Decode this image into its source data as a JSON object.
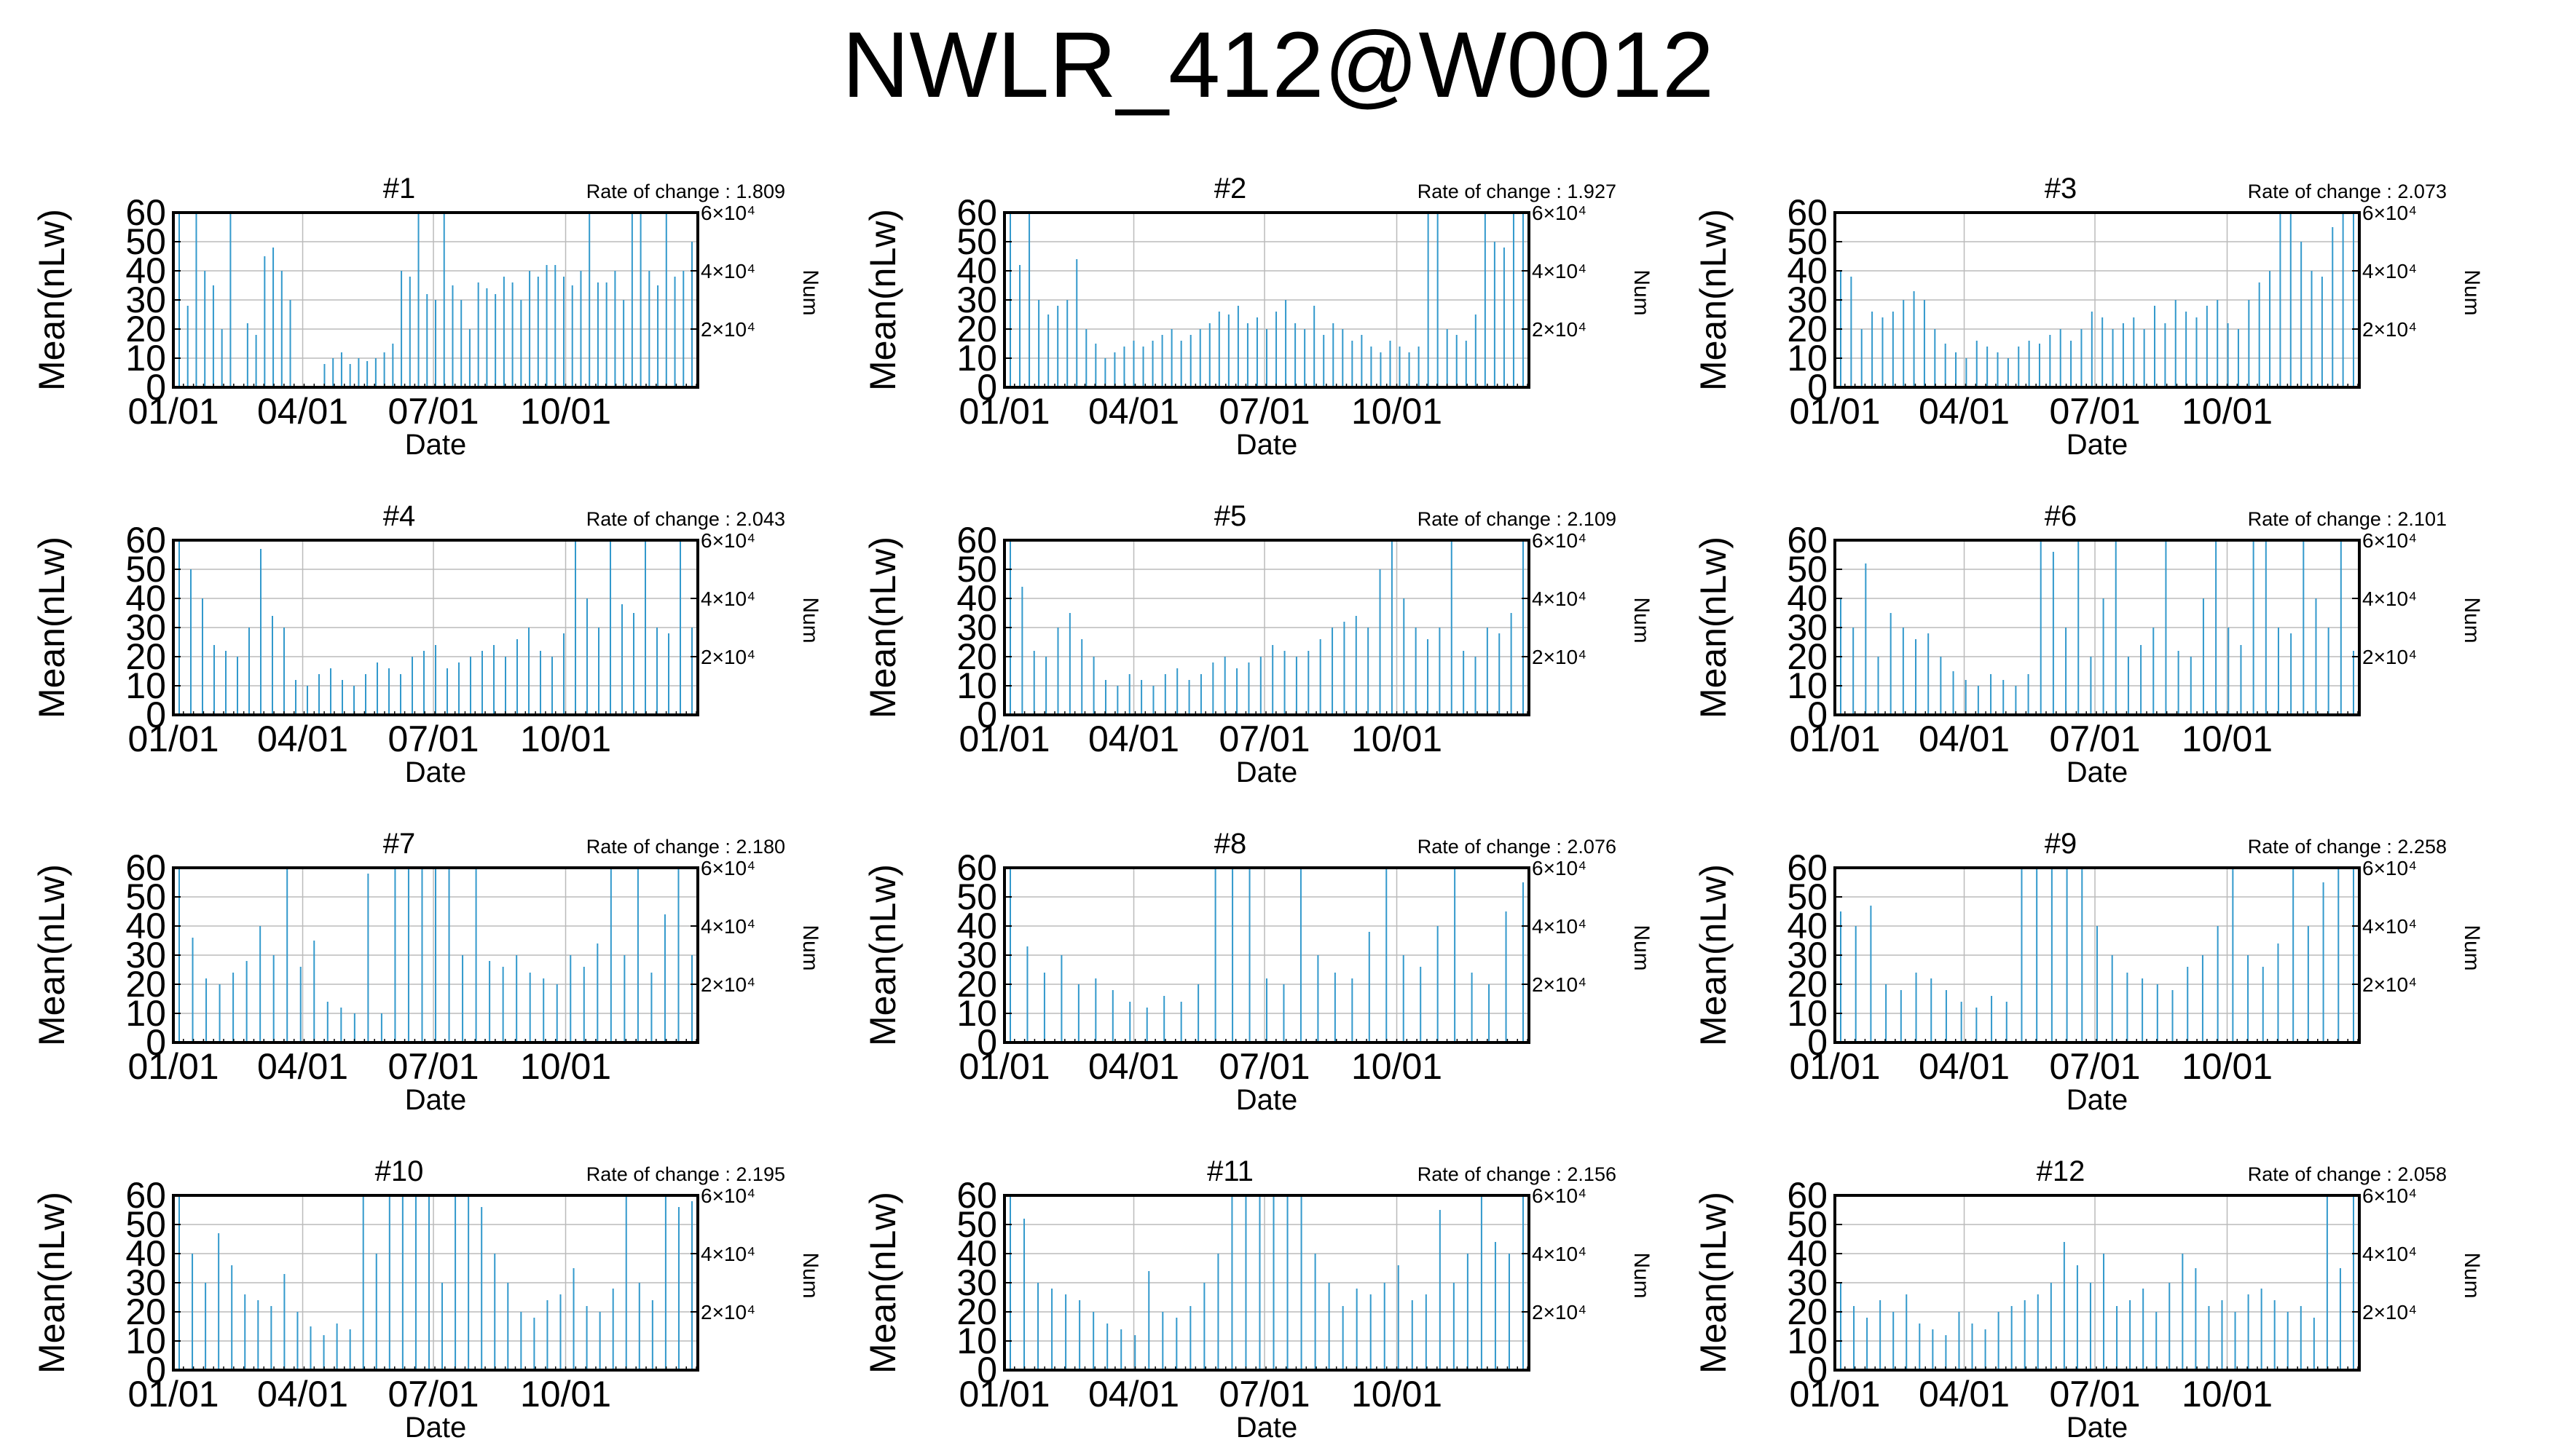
{
  "page": {
    "title": "NWLR_412@W0012"
  },
  "colors": {
    "series": "#3399cc",
    "grid": "#bbbbbb",
    "frame": "#000000"
  },
  "chart_data": [
    {
      "type": "bar",
      "title": "#1",
      "annotation": "Rate of change : 1.809",
      "xlabel": "Date",
      "ylabel": "Mean(nLw)",
      "y2label": "Num",
      "xticks": [
        "01/01",
        "04/01",
        "07/01",
        "10/01"
      ],
      "yticks": [
        0,
        10,
        20,
        30,
        40,
        50,
        60
      ],
      "ylim": [
        0,
        60
      ],
      "y2ticks": [
        "2×10⁴",
        "4×10⁴",
        "6×10⁴"
      ],
      "y2values": [
        20000,
        40000,
        60000
      ],
      "y2lim": [
        0,
        60000
      ],
      "xlim": [
        "01/01",
        "12/31"
      ],
      "grid": true,
      "series": [
        {
          "values": [
            60,
            28,
            60,
            40,
            35,
            20,
            60,
            0,
            22,
            18,
            45,
            48,
            40,
            30,
            0,
            0,
            0,
            8,
            10,
            12,
            8,
            10,
            9,
            10,
            12,
            15,
            40,
            38,
            60,
            32,
            30,
            60,
            35,
            30,
            20,
            36,
            34,
            32,
            38,
            36,
            30,
            40,
            38,
            42,
            42,
            38,
            35,
            40,
            60,
            36,
            36,
            40,
            30,
            60,
            60,
            40,
            35,
            60,
            38,
            40,
            50
          ]
        }
      ]
    },
    {
      "type": "bar",
      "title": "#2",
      "annotation": "Rate of change : 1.927",
      "xlabel": "Date",
      "ylabel": "Mean(nLw)",
      "y2label": "Num",
      "xticks": [
        "01/01",
        "04/01",
        "07/01",
        "10/01"
      ],
      "yticks": [
        0,
        10,
        20,
        30,
        40,
        50,
        60
      ],
      "ylim": [
        0,
        60
      ],
      "y2ticks": [
        "2×10⁴",
        "4×10⁴",
        "6×10⁴"
      ],
      "y2values": [
        20000,
        40000,
        60000
      ],
      "y2lim": [
        0,
        60000
      ],
      "xlim": [
        "01/01",
        "12/31"
      ],
      "grid": true,
      "series": [
        {
          "values": [
            60,
            42,
            60,
            30,
            25,
            28,
            30,
            44,
            20,
            15,
            10,
            12,
            14,
            16,
            14,
            16,
            18,
            20,
            16,
            18,
            20,
            22,
            26,
            25,
            28,
            22,
            24,
            20,
            26,
            30,
            22,
            20,
            28,
            18,
            22,
            20,
            16,
            18,
            14,
            12,
            16,
            14,
            12,
            14,
            60,
            60,
            20,
            18,
            16,
            25,
            60,
            50,
            48,
            60,
            60
          ]
        }
      ]
    },
    {
      "type": "bar",
      "title": "#3",
      "annotation": "Rate of change : 2.073",
      "xlabel": "Date",
      "ylabel": "Mean(nLw)",
      "y2label": "Num",
      "xticks": [
        "01/01",
        "04/01",
        "07/01",
        "10/01"
      ],
      "yticks": [
        0,
        10,
        20,
        30,
        40,
        50,
        60
      ],
      "ylim": [
        0,
        60
      ],
      "y2ticks": [
        "2×10⁴",
        "4×10⁴",
        "6×10⁴"
      ],
      "y2values": [
        20000,
        40000,
        60000
      ],
      "y2lim": [
        0,
        60000
      ],
      "xlim": [
        "01/01",
        "12/31"
      ],
      "grid": true,
      "series": [
        {
          "values": [
            40,
            38,
            20,
            26,
            24,
            26,
            30,
            33,
            30,
            20,
            15,
            12,
            10,
            16,
            14,
            12,
            10,
            14,
            16,
            15,
            18,
            20,
            16,
            20,
            26,
            24,
            20,
            22,
            24,
            20,
            28,
            22,
            30,
            26,
            24,
            28,
            30,
            22,
            20,
            30,
            36,
            40,
            60,
            60,
            50,
            40,
            38,
            55,
            60,
            60
          ]
        }
      ]
    },
    {
      "type": "bar",
      "title": "#4",
      "annotation": "Rate of change : 2.043",
      "xlabel": "Date",
      "ylabel": "Mean(nLw)",
      "y2label": "Num",
      "xticks": [
        "01/01",
        "04/01",
        "07/01",
        "10/01"
      ],
      "yticks": [
        0,
        10,
        20,
        30,
        40,
        50,
        60
      ],
      "ylim": [
        0,
        60
      ],
      "y2ticks": [
        "2×10⁴",
        "4×10⁴",
        "6×10⁴"
      ],
      "y2values": [
        20000,
        40000,
        60000
      ],
      "y2lim": [
        0,
        60000
      ],
      "xlim": [
        "01/01",
        "12/31"
      ],
      "grid": true,
      "series": [
        {
          "values": [
            60,
            50,
            40,
            24,
            22,
            20,
            30,
            57,
            34,
            30,
            12,
            10,
            14,
            16,
            12,
            10,
            14,
            18,
            16,
            14,
            20,
            22,
            24,
            16,
            18,
            20,
            22,
            24,
            20,
            26,
            30,
            22,
            20,
            28,
            60,
            40,
            30,
            60,
            38,
            35,
            60,
            30,
            28,
            60,
            30
          ]
        }
      ]
    },
    {
      "type": "bar",
      "title": "#5",
      "annotation": "Rate of change : 2.109",
      "xlabel": "Date",
      "ylabel": "Mean(nLw)",
      "y2label": "Num",
      "xticks": [
        "01/01",
        "04/01",
        "07/01",
        "10/01"
      ],
      "yticks": [
        0,
        10,
        20,
        30,
        40,
        50,
        60
      ],
      "ylim": [
        0,
        60
      ],
      "y2ticks": [
        "2×10⁴",
        "4×10⁴",
        "6×10⁴"
      ],
      "y2values": [
        20000,
        40000,
        60000
      ],
      "y2lim": [
        0,
        60000
      ],
      "xlim": [
        "01/01",
        "12/31"
      ],
      "grid": true,
      "series": [
        {
          "values": [
            60,
            44,
            22,
            20,
            30,
            35,
            26,
            20,
            12,
            10,
            14,
            12,
            10,
            14,
            16,
            12,
            14,
            18,
            20,
            16,
            18,
            20,
            24,
            22,
            20,
            22,
            26,
            30,
            32,
            34,
            30,
            50,
            60,
            40,
            30,
            26,
            30,
            60,
            22,
            20,
            30,
            28,
            35,
            60
          ]
        }
      ]
    },
    {
      "type": "bar",
      "title": "#6",
      "annotation": "Rate of change : 2.101",
      "xlabel": "Date",
      "ylabel": "Mean(nLw)",
      "y2label": "Num",
      "xticks": [
        "01/01",
        "04/01",
        "07/01",
        "10/01"
      ],
      "yticks": [
        0,
        10,
        20,
        30,
        40,
        50,
        60
      ],
      "ylim": [
        0,
        60
      ],
      "y2ticks": [
        "2×10⁴",
        "4×10⁴",
        "6×10⁴"
      ],
      "y2values": [
        20000,
        40000,
        60000
      ],
      "y2lim": [
        0,
        60000
      ],
      "xlim": [
        "01/01",
        "12/31"
      ],
      "grid": true,
      "series": [
        {
          "values": [
            40,
            30,
            52,
            20,
            35,
            30,
            26,
            28,
            20,
            15,
            12,
            10,
            14,
            12,
            10,
            14,
            60,
            56,
            30,
            60,
            20,
            40,
            60,
            20,
            24,
            30,
            60,
            22,
            20,
            40,
            60,
            30,
            24,
            60,
            60,
            30,
            28,
            60,
            40,
            30,
            60,
            22
          ]
        }
      ]
    },
    {
      "type": "bar",
      "title": "#7",
      "annotation": "Rate of change : 2.180",
      "xlabel": "Date",
      "ylabel": "Mean(nLw)",
      "y2label": "Num",
      "xticks": [
        "01/01",
        "04/01",
        "07/01",
        "10/01"
      ],
      "yticks": [
        0,
        10,
        20,
        30,
        40,
        50,
        60
      ],
      "ylim": [
        0,
        60
      ],
      "y2ticks": [
        "2×10⁴",
        "4×10⁴",
        "6×10⁴"
      ],
      "y2values": [
        20000,
        40000,
        60000
      ],
      "y2lim": [
        0,
        60000
      ],
      "xlim": [
        "01/01",
        "12/31"
      ],
      "grid": true,
      "series": [
        {
          "values": [
            60,
            36,
            22,
            20,
            24,
            28,
            40,
            30,
            60,
            26,
            35,
            14,
            12,
            10,
            58,
            10,
            60,
            60,
            60,
            60,
            60,
            30,
            60,
            28,
            26,
            30,
            24,
            22,
            20,
            30,
            26,
            34,
            60,
            30,
            60,
            24,
            44,
            60,
            30
          ]
        }
      ]
    },
    {
      "type": "bar",
      "title": "#8",
      "annotation": "Rate of change : 2.076",
      "xlabel": "Date",
      "ylabel": "Mean(nLw)",
      "y2label": "Num",
      "xticks": [
        "01/01",
        "04/01",
        "07/01",
        "10/01"
      ],
      "yticks": [
        0,
        10,
        20,
        30,
        40,
        50,
        60
      ],
      "ylim": [
        0,
        60
      ],
      "y2ticks": [
        "2×10⁴",
        "4×10⁴",
        "6×10⁴"
      ],
      "y2values": [
        20000,
        40000,
        60000
      ],
      "y2lim": [
        0,
        60000
      ],
      "xlim": [
        "01/01",
        "12/31"
      ],
      "grid": true,
      "series": [
        {
          "values": [
            60,
            33,
            24,
            30,
            20,
            22,
            18,
            14,
            12,
            16,
            14,
            20,
            60,
            60,
            60,
            22,
            20,
            60,
            30,
            24,
            22,
            38,
            60,
            30,
            26,
            40,
            60,
            24,
            20,
            45,
            55
          ]
        }
      ]
    },
    {
      "type": "bar",
      "title": "#9",
      "annotation": "Rate of change : 2.258",
      "xlabel": "Date",
      "ylabel": "Mean(nLw)",
      "y2label": "Num",
      "xticks": [
        "01/01",
        "04/01",
        "07/01",
        "10/01"
      ],
      "yticks": [
        0,
        10,
        20,
        30,
        40,
        50,
        60
      ],
      "ylim": [
        0,
        60
      ],
      "y2ticks": [
        "2×10⁴",
        "4×10⁴",
        "6×10⁴"
      ],
      "y2values": [
        20000,
        40000,
        60000
      ],
      "y2lim": [
        0,
        60000
      ],
      "xlim": [
        "01/01",
        "12/31"
      ],
      "grid": true,
      "series": [
        {
          "values": [
            45,
            40,
            47,
            20,
            18,
            24,
            22,
            18,
            14,
            12,
            16,
            14,
            60,
            60,
            60,
            60,
            60,
            40,
            30,
            24,
            22,
            20,
            18,
            26,
            30,
            40,
            60,
            30,
            26,
            34,
            60,
            40,
            55,
            60,
            60
          ]
        }
      ]
    },
    {
      "type": "bar",
      "title": "#10",
      "annotation": "Rate of change : 2.195",
      "xlabel": "Date",
      "ylabel": "Mean(nLw)",
      "y2label": "Num",
      "xticks": [
        "01/01",
        "04/01",
        "07/01",
        "10/01"
      ],
      "yticks": [
        0,
        10,
        20,
        30,
        40,
        50,
        60
      ],
      "ylim": [
        0,
        60
      ],
      "y2ticks": [
        "2×10⁴",
        "4×10⁴",
        "6×10⁴"
      ],
      "y2values": [
        20000,
        40000,
        60000
      ],
      "y2lim": [
        0,
        60000
      ],
      "xlim": [
        "01/01",
        "12/31"
      ],
      "grid": true,
      "series": [
        {
          "values": [
            60,
            40,
            30,
            47,
            36,
            26,
            24,
            22,
            33,
            20,
            15,
            12,
            16,
            14,
            60,
            40,
            60,
            60,
            60,
            60,
            30,
            60,
            60,
            56,
            40,
            30,
            20,
            18,
            24,
            26,
            35,
            22,
            20,
            28,
            60,
            30,
            24,
            60,
            56,
            58
          ]
        }
      ]
    },
    {
      "type": "bar",
      "title": "#11",
      "annotation": "Rate of change : 2.156",
      "xlabel": "Date",
      "ylabel": "Mean(nLw)",
      "y2label": "Num",
      "xticks": [
        "01/01",
        "04/01",
        "07/01",
        "10/01"
      ],
      "yticks": [
        0,
        10,
        20,
        30,
        40,
        50,
        60
      ],
      "ylim": [
        0,
        60
      ],
      "y2ticks": [
        "2×10⁴",
        "4×10⁴",
        "6×10⁴"
      ],
      "y2values": [
        20000,
        40000,
        60000
      ],
      "y2lim": [
        0,
        60000
      ],
      "xlim": [
        "01/01",
        "12/31"
      ],
      "grid": true,
      "series": [
        {
          "values": [
            60,
            52,
            30,
            28,
            26,
            24,
            20,
            16,
            14,
            12,
            34,
            20,
            18,
            22,
            30,
            40,
            60,
            60,
            60,
            60,
            60,
            60,
            40,
            30,
            22,
            28,
            26,
            30,
            36,
            24,
            26,
            55,
            30,
            40,
            60,
            44,
            40,
            60
          ]
        }
      ]
    },
    {
      "type": "bar",
      "title": "#12",
      "annotation": "Rate of change : 2.058",
      "xlabel": "Date",
      "ylabel": "Mean(nLw)",
      "y2label": "Num",
      "xticks": [
        "01/01",
        "04/01",
        "07/01",
        "10/01"
      ],
      "yticks": [
        0,
        10,
        20,
        30,
        40,
        50,
        60
      ],
      "ylim": [
        0,
        60
      ],
      "y2ticks": [
        "2×10⁴",
        "4×10⁴",
        "6×10⁴"
      ],
      "y2values": [
        20000,
        40000,
        60000
      ],
      "y2lim": [
        0,
        60000
      ],
      "xlim": [
        "01/01",
        "12/31"
      ],
      "grid": true,
      "series": [
        {
          "values": [
            30,
            22,
            18,
            24,
            20,
            26,
            16,
            14,
            12,
            20,
            16,
            14,
            20,
            22,
            24,
            26,
            30,
            44,
            36,
            30,
            40,
            22,
            24,
            28,
            20,
            30,
            40,
            35,
            22,
            24,
            20,
            26,
            28,
            24,
            20,
            22,
            18,
            60,
            35,
            60
          ]
        }
      ]
    }
  ]
}
